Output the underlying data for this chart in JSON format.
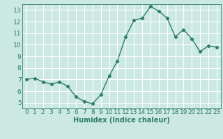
{
  "x": [
    0,
    1,
    2,
    3,
    4,
    5,
    6,
    7,
    8,
    9,
    10,
    11,
    12,
    13,
    14,
    15,
    16,
    17,
    18,
    19,
    20,
    21,
    22,
    23
  ],
  "y": [
    7.0,
    7.1,
    6.8,
    6.6,
    6.8,
    6.4,
    5.5,
    5.1,
    4.9,
    5.7,
    7.3,
    8.6,
    10.7,
    12.1,
    12.3,
    13.3,
    12.9,
    12.3,
    10.7,
    11.3,
    10.5,
    9.4,
    9.9,
    9.8
  ],
  "line_color": "#2e7d6e",
  "marker": "D",
  "marker_size": 2.2,
  "linewidth": 1.0,
  "bg_color": "#cce8e2",
  "grid_color": "#ffffff",
  "xlabel": "Humidex (Indice chaleur)",
  "xlabel_fontsize": 7,
  "xlim": [
    -0.5,
    23.5
  ],
  "ylim": [
    4.5,
    13.5
  ],
  "yticks": [
    5,
    6,
    7,
    8,
    9,
    10,
    11,
    12,
    13
  ],
  "xticks": [
    0,
    1,
    2,
    3,
    4,
    5,
    6,
    7,
    8,
    9,
    10,
    11,
    12,
    13,
    14,
    15,
    16,
    17,
    18,
    19,
    20,
    21,
    22,
    23
  ],
  "tick_fontsize": 6.5,
  "axis_color": "#2e7d6e"
}
